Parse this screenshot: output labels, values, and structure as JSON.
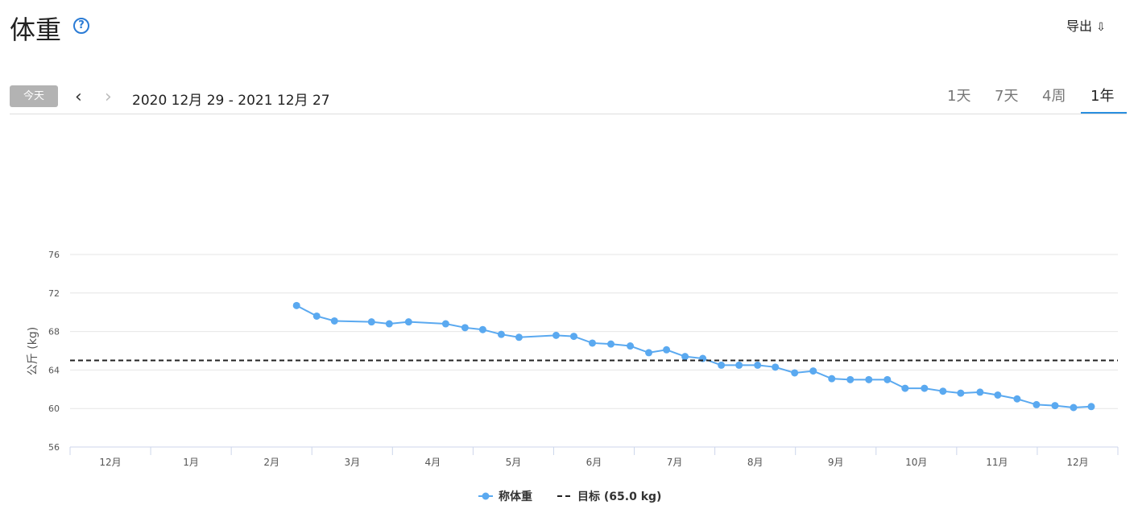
{
  "page": {
    "title": "体重",
    "export": "导出",
    "today": "今天",
    "date_range": "2020 12月 29 - 2021 12月 27",
    "tabs": [
      "1天",
      "7天",
      "4周",
      "1年"
    ],
    "active_tab": 3
  },
  "chart_data": {
    "type": "line",
    "y_label": "公斤 (kg)",
    "xlim": [
      0,
      13
    ],
    "xticks": [
      {
        "value": 0.5,
        "label": "12月"
      },
      {
        "value": 1.5,
        "label": "1月"
      },
      {
        "value": 2.5,
        "label": "2月"
      },
      {
        "value": 3.5,
        "label": "3月"
      },
      {
        "value": 4.5,
        "label": "4月"
      },
      {
        "value": 5.5,
        "label": "5月"
      },
      {
        "value": 6.5,
        "label": "6月"
      },
      {
        "value": 7.5,
        "label": "7月"
      },
      {
        "value": 8.5,
        "label": "8月"
      },
      {
        "value": 9.5,
        "label": "9月"
      },
      {
        "value": 10.5,
        "label": "10月"
      },
      {
        "value": 11.5,
        "label": "11月"
      },
      {
        "value": 12.5,
        "label": "12月"
      }
    ],
    "ylim": [
      56,
      76
    ],
    "yticks": [
      56,
      60,
      64,
      68,
      72,
      76
    ],
    "grid": true,
    "series": [
      {
        "name": "称体重",
        "color": "#5aa9f0",
        "x": [
          2.81,
          3.06,
          3.28,
          3.74,
          3.96,
          4.2,
          4.66,
          4.9,
          5.12,
          5.35,
          5.57,
          6.03,
          6.25,
          6.48,
          6.71,
          6.95,
          7.18,
          7.4,
          7.63,
          7.85,
          8.08,
          8.3,
          8.53,
          8.75,
          8.99,
          9.22,
          9.45,
          9.68,
          9.91,
          10.14,
          10.36,
          10.6,
          10.83,
          11.05,
          11.29,
          11.51,
          11.75,
          11.99,
          12.22,
          12.45,
          12.67
        ],
        "values": [
          70.7,
          69.6,
          69.1,
          69.0,
          68.8,
          69.0,
          68.8,
          68.4,
          68.2,
          67.7,
          67.4,
          67.6,
          67.5,
          66.8,
          66.7,
          66.5,
          65.8,
          66.1,
          65.4,
          65.2,
          64.5,
          64.5,
          64.5,
          64.3,
          63.7,
          63.9,
          63.1,
          63.0,
          63.0,
          63.0,
          62.1,
          62.1,
          61.8,
          61.6,
          61.7,
          61.4,
          61.0,
          60.4,
          60.3,
          60.1,
          60.2
        ]
      },
      {
        "name": "目标 (65.0 kg)",
        "color": "#222222",
        "dashed": true,
        "values": [
          65
        ]
      }
    ]
  }
}
